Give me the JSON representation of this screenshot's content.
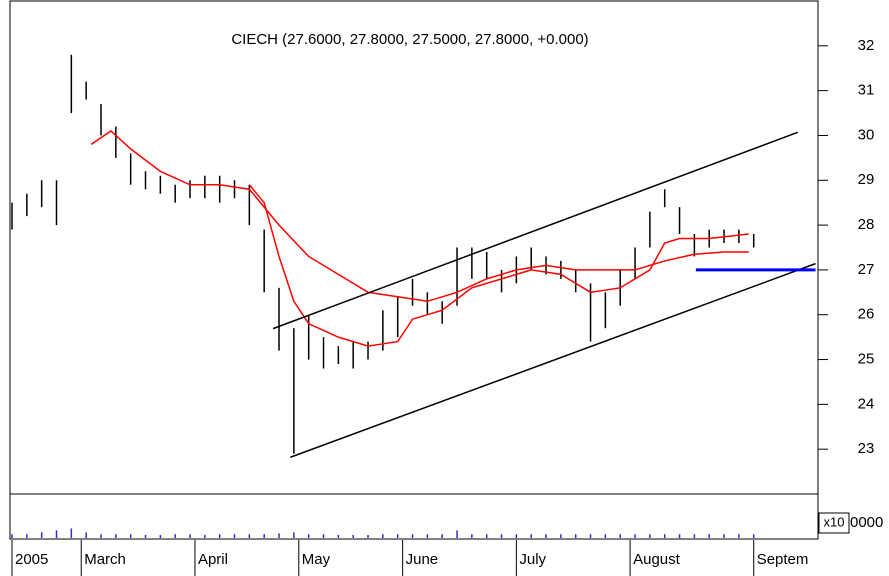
{
  "chart_data": {
    "type": "ohlc",
    "title": "CIECH (27.6000, 27.8000, 27.5000, 27.8000, +0.000)",
    "x": [
      0,
      3,
      6,
      9,
      12,
      15,
      18,
      21,
      24,
      27,
      30,
      33,
      36,
      39,
      42,
      45,
      48,
      51,
      54,
      57,
      60,
      63,
      66,
      69,
      72,
      75,
      78,
      81,
      84,
      87,
      90,
      93,
      96,
      99,
      102,
      105,
      108,
      111,
      114,
      117,
      120,
      123,
      126,
      129,
      132,
      135,
      138,
      141,
      144,
      147,
      150
    ],
    "high": [
      28.5,
      28.7,
      29.0,
      29.0,
      31.8,
      31.2,
      30.7,
      30.2,
      29.6,
      29.2,
      29.1,
      28.9,
      29.0,
      29.1,
      29.1,
      29.0,
      28.9,
      27.9,
      26.6,
      25.7,
      26.0,
      25.5,
      25.3,
      25.4,
      25.4,
      26.1,
      26.4,
      26.8,
      26.5,
      26.3,
      27.5,
      27.5,
      27.4,
      27.0,
      27.3,
      27.5,
      27.3,
      27.2,
      27.0,
      26.7,
      26.5,
      27.0,
      27.5,
      28.3,
      28.8,
      28.4,
      27.8,
      27.9,
      27.9,
      27.9,
      27.8
    ],
    "low": [
      27.9,
      28.2,
      28.4,
      28.0,
      30.5,
      30.8,
      30.0,
      29.5,
      28.9,
      28.8,
      28.7,
      28.5,
      28.6,
      28.6,
      28.5,
      28.6,
      28.0,
      26.5,
      25.2,
      22.9,
      25.0,
      24.8,
      24.9,
      24.8,
      25.0,
      25.2,
      25.5,
      26.2,
      26.0,
      25.8,
      26.2,
      26.8,
      26.8,
      26.5,
      26.7,
      27.0,
      26.9,
      26.8,
      26.5,
      25.4,
      25.7,
      26.2,
      26.8,
      27.5,
      28.4,
      27.8,
      27.3,
      27.5,
      27.6,
      27.6,
      27.5
    ],
    "volume": [
      1,
      1,
      1.5,
      2,
      2.5,
      1.5,
      1,
      1,
      1,
      0.8,
      0.8,
      1,
      1,
      0.8,
      1,
      1,
      1,
      1,
      1.2,
      1.5,
      1,
      1,
      0.8,
      0.8,
      0.8,
      1,
      1,
      1,
      1,
      1,
      2,
      1,
      1,
      1,
      1,
      1,
      1,
      1,
      1,
      1,
      1,
      1,
      1,
      1,
      1,
      1,
      1,
      1,
      1,
      1,
      1
    ],
    "bar_color": "#000000",
    "volume_color": "#3030c0",
    "moving_averages": [
      {
        "color": "#ff0000",
        "x": [
          16,
          20,
          24,
          30,
          36,
          42,
          48,
          54,
          60,
          66,
          72,
          78,
          84,
          90,
          96,
          102,
          108,
          114,
          120,
          126,
          132,
          138,
          144,
          149
        ],
        "values": [
          29.8,
          30.1,
          29.7,
          29.2,
          28.9,
          28.9,
          28.8,
          28.0,
          27.3,
          26.9,
          26.5,
          26.4,
          26.3,
          26.5,
          26.8,
          27.0,
          27.1,
          27.0,
          27.0,
          27.0,
          27.2,
          27.35,
          27.4,
          27.4
        ]
      },
      {
        "color": "#ff0000",
        "x": [
          48,
          51,
          54,
          57,
          60,
          66,
          72,
          78,
          81,
          87,
          93,
          99,
          105,
          111,
          117,
          123,
          129,
          132,
          135,
          141,
          149
        ],
        "values": [
          28.9,
          28.5,
          27.3,
          26.3,
          25.8,
          25.5,
          25.3,
          25.4,
          25.9,
          26.1,
          26.6,
          26.8,
          27.0,
          26.9,
          26.5,
          26.6,
          27.0,
          27.6,
          27.7,
          27.7,
          27.8
        ]
      }
    ],
    "trend_lines": [
      {
        "color": "#000000",
        "x": [
          52.8,
          158.9
        ],
        "values": [
          25.69,
          30.07
        ]
      },
      {
        "color": "#000000",
        "x": [
          56.3,
          162.5
        ],
        "values": [
          22.82,
          27.14
        ]
      },
      {
        "color": "#0000ff",
        "x": [
          138.3,
          162.5
        ],
        "values": [
          27.0,
          27.0
        ]
      }
    ],
    "xlim": [
      0,
      163
    ],
    "xticks": [
      {
        "value": 0,
        "label": "2005"
      },
      {
        "value": 14,
        "label": "March"
      },
      {
        "value": 37,
        "label": "April"
      },
      {
        "value": 58,
        "label": "May"
      },
      {
        "value": 79,
        "label": "June"
      },
      {
        "value": 102,
        "label": "July"
      },
      {
        "value": 125,
        "label": "August"
      },
      {
        "value": 150,
        "label": "Septem"
      }
    ],
    "ylim": [
      22,
      33
    ],
    "yticks": [
      23,
      24,
      25,
      26,
      27,
      28,
      29,
      30,
      31,
      32
    ],
    "vlim": [
      0,
      10
    ],
    "volume_label": "x10",
    "volume_label_suffix": "0000"
  }
}
